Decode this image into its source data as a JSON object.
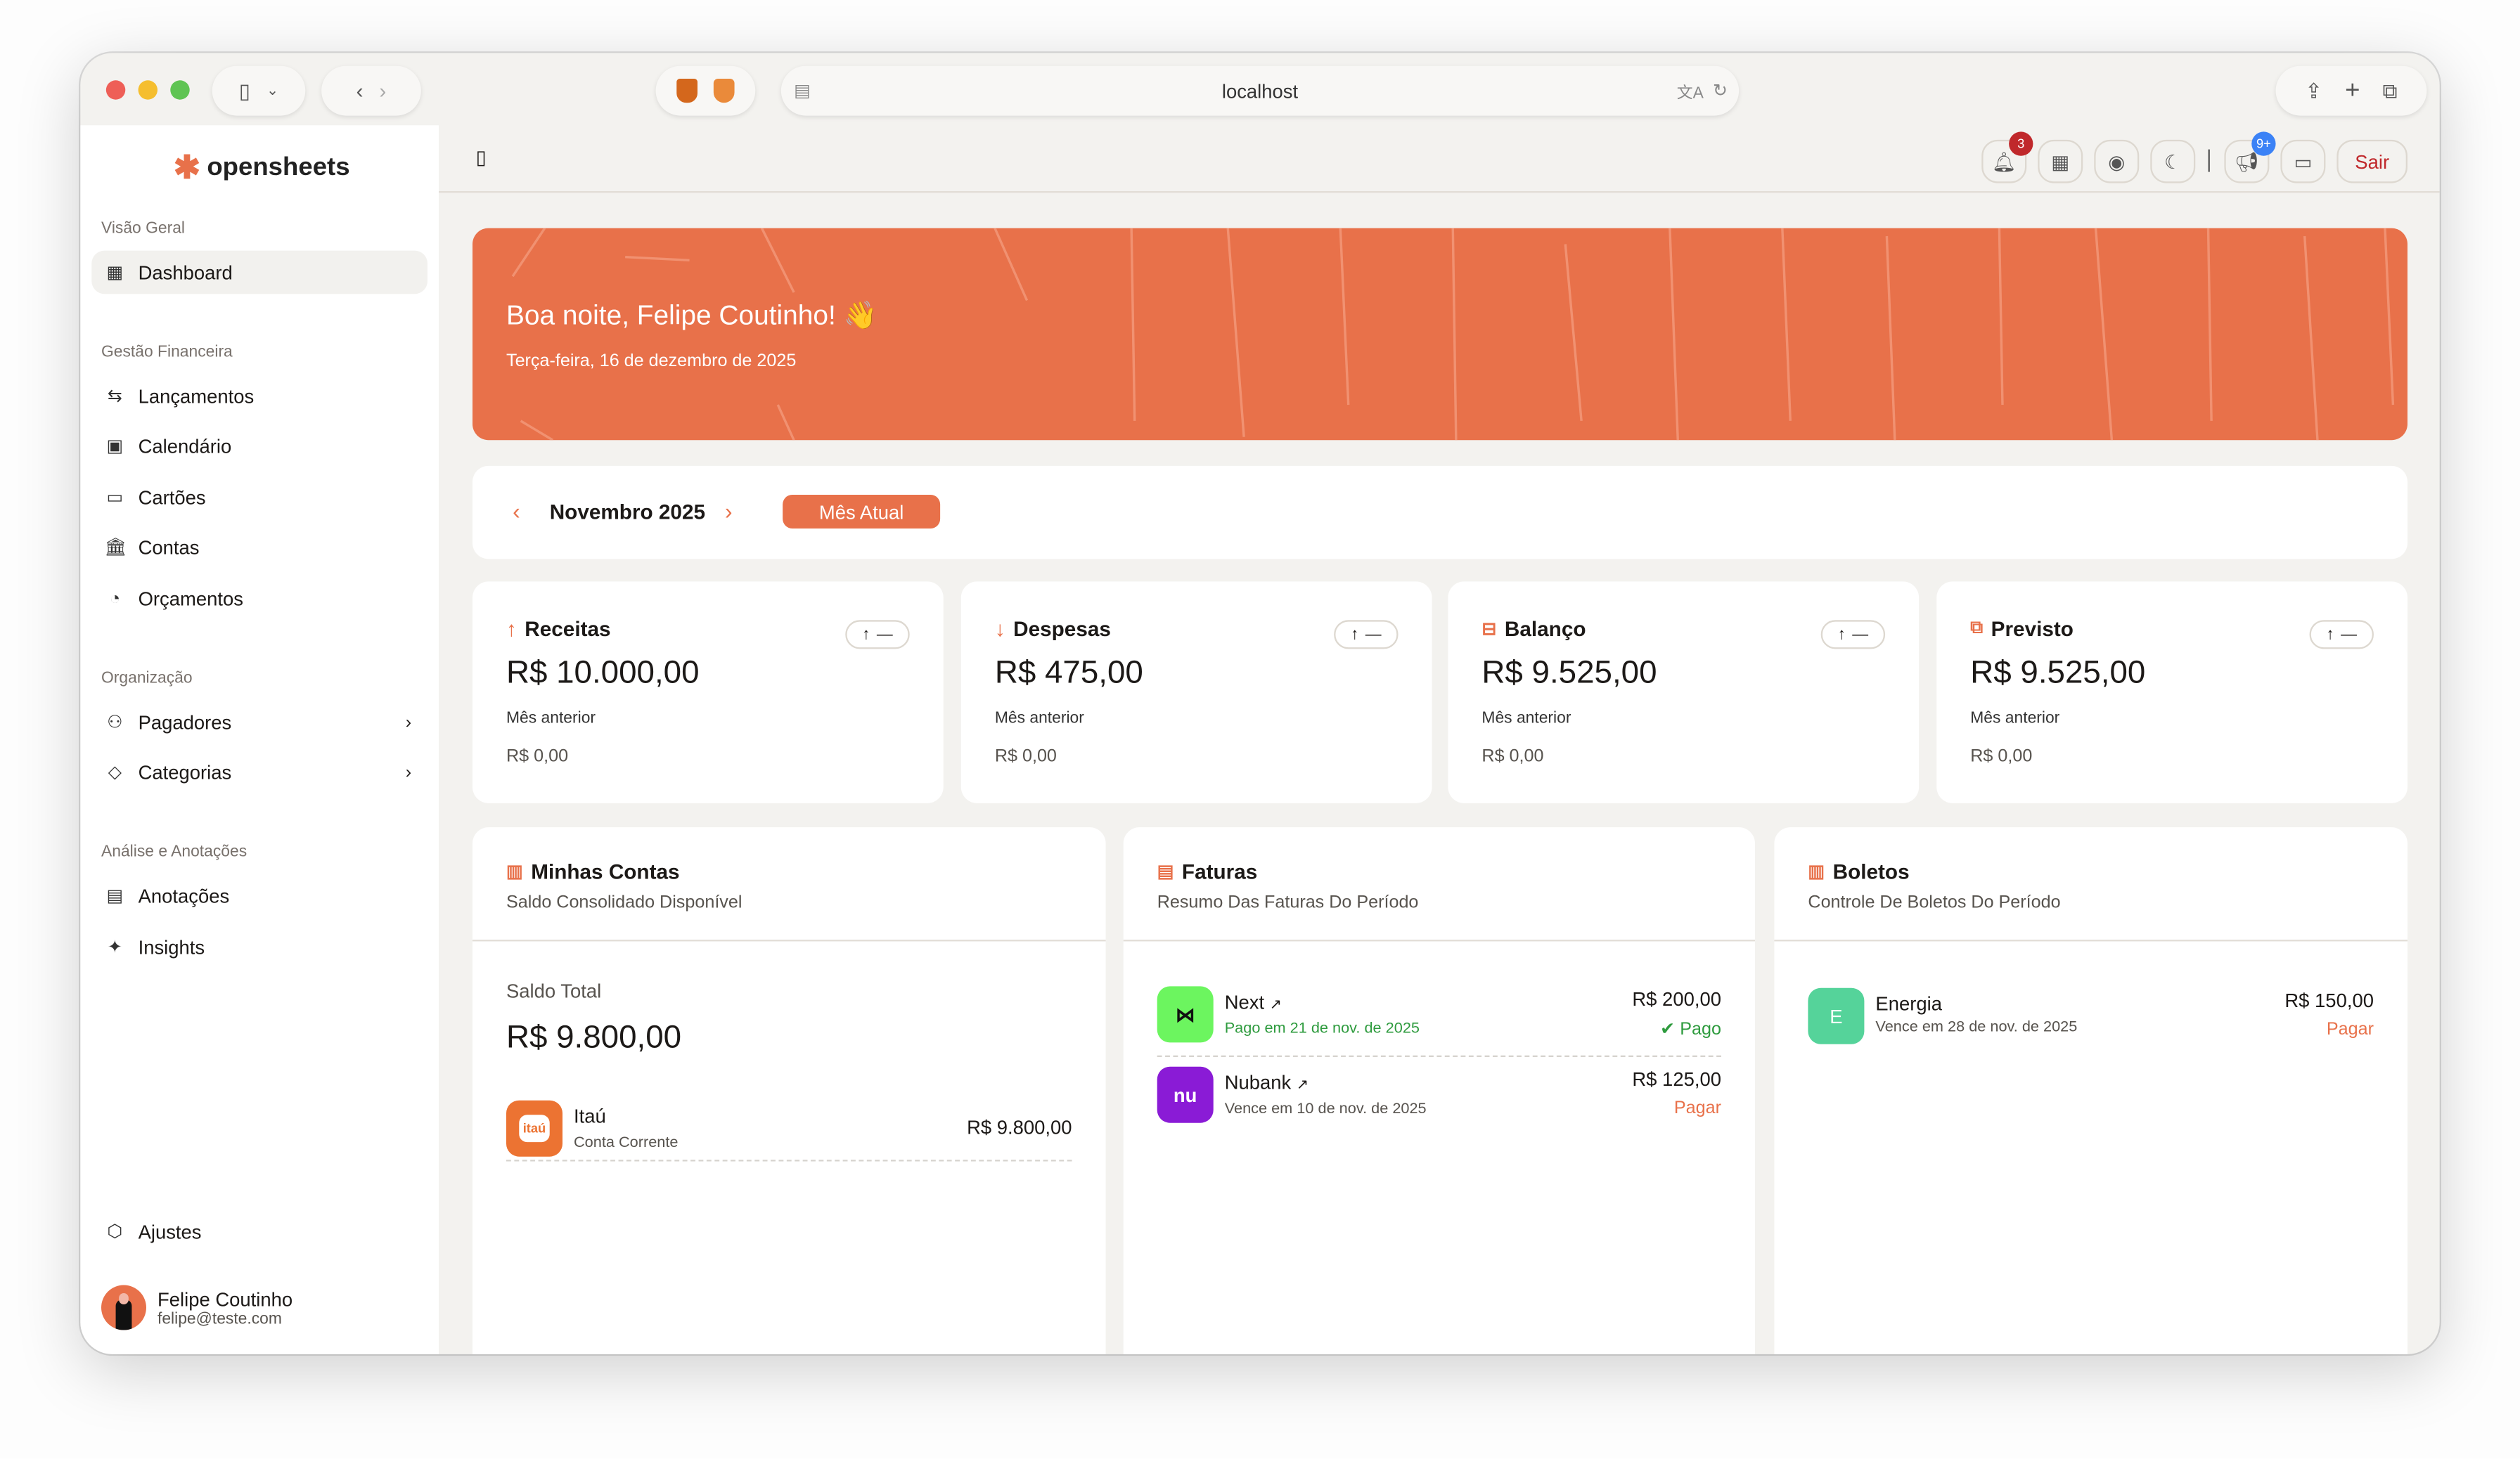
{
  "browser": {
    "url": "localhost"
  },
  "app": {
    "name": "opensheets"
  },
  "sidebar": {
    "sections": [
      {
        "label": "Visão Geral"
      },
      {
        "label": "Gestão Financeira"
      },
      {
        "label": "Organização"
      },
      {
        "label": "Análise e Anotações"
      }
    ],
    "items": [
      {
        "label": "Dashboard",
        "icon": "grid-icon",
        "active": true
      },
      {
        "label": "Lançamentos",
        "icon": "arrows-icon"
      },
      {
        "label": "Calendário",
        "icon": "calendar-icon"
      },
      {
        "label": "Cartões",
        "icon": "card-icon"
      },
      {
        "label": "Contas",
        "icon": "bank-icon"
      },
      {
        "label": "Orçamentos",
        "icon": "gauge-icon"
      },
      {
        "label": "Pagadores",
        "icon": "users-icon"
      },
      {
        "label": "Categorias",
        "icon": "tag-icon"
      },
      {
        "label": "Anotações",
        "icon": "notes-icon"
      },
      {
        "label": "Insights",
        "icon": "sparkles-icon"
      },
      {
        "label": "Ajustes",
        "icon": "settings-icon"
      }
    ],
    "user": {
      "name": "Felipe Coutinho",
      "email": "felipe@teste.com"
    }
  },
  "topbar": {
    "notifications_count": "3",
    "announcements_count": "9+",
    "logout_label": "Sair"
  },
  "banner": {
    "greeting": "Boa noite, Felipe Coutinho! 👋",
    "date": "Terça-feira, 16 de dezembro de 2025"
  },
  "period": {
    "month": "Novembro 2025",
    "current_label": "Mês Atual"
  },
  "stats": [
    {
      "title": "Receitas",
      "value": "R$ 10.000,00",
      "prev_label": "Mês anterior",
      "prev_value": "R$ 0,00",
      "trend": "—"
    },
    {
      "title": "Despesas",
      "value": "R$ 475,00",
      "prev_label": "Mês anterior",
      "prev_value": "R$ 0,00",
      "trend": "—"
    },
    {
      "title": "Balanço",
      "value": "R$ 9.525,00",
      "prev_label": "Mês anterior",
      "prev_value": "R$ 0,00",
      "trend": "—"
    },
    {
      "title": "Previsto",
      "value": "R$ 9.525,00",
      "prev_label": "Mês anterior",
      "prev_value": "R$ 0,00",
      "trend": "—"
    }
  ],
  "accounts": {
    "title": "Minhas Contas",
    "subtitle": "Saldo Consolidado Disponível",
    "total_label": "Saldo Total",
    "total": "R$ 9.800,00",
    "items": [
      {
        "name": "Itaú",
        "type": "Conta Corrente",
        "amount": "R$ 9.800,00",
        "logo": "itaú"
      }
    ]
  },
  "invoices": {
    "title": "Faturas",
    "subtitle": "Resumo Das Faturas Do Período",
    "items": [
      {
        "name": "Next",
        "detail": "Pago em 21 de nov. de 2025",
        "amount": "R$ 200,00",
        "status": "Pago",
        "color": "#6cf55f"
      },
      {
        "name": "Nubank",
        "detail": "Vence em 10 de nov. de 2025",
        "amount": "R$ 125,00",
        "status": "Pagar",
        "logo": "nu",
        "color": "#8a1bd6"
      }
    ]
  },
  "bills": {
    "title": "Boletos",
    "subtitle": "Controle De Boletos Do Período",
    "items": [
      {
        "name": "Energia",
        "initial": "E",
        "detail": "Vence em 28 de nov. de 2025",
        "amount": "R$ 150,00",
        "status": "Pagar"
      }
    ]
  },
  "colors": {
    "accent": "#e8714a",
    "paid": "#2e9b3e",
    "due": "#e8714a",
    "danger": "#c0282b",
    "info": "#3b82f6"
  }
}
